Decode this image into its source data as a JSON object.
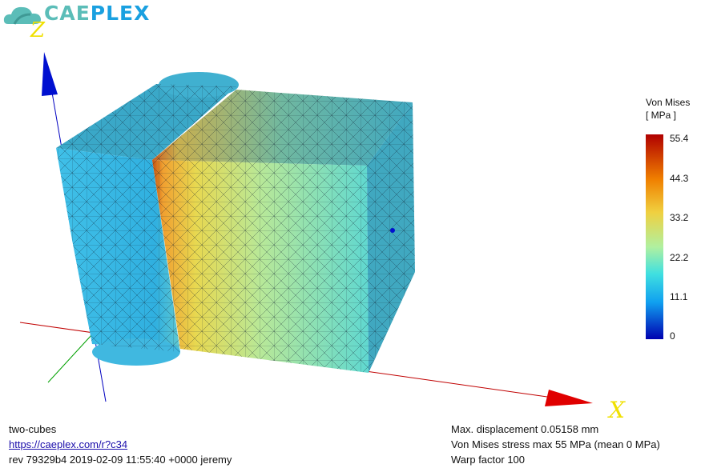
{
  "logo": {
    "part1": "CAE",
    "part2": "PLEX"
  },
  "axes": {
    "x": "X",
    "z": "Z"
  },
  "colorbar": {
    "title": "Von Mises",
    "unit": "[ MPa ]",
    "ticks": [
      "55.4",
      "44.3",
      "33.2",
      "22.2",
      "11.1",
      "0"
    ],
    "colors": [
      "#b00000",
      "#f08000",
      "#f0d040",
      "#b0f0a0",
      "#40e0e0",
      "#10a0f0",
      "#0000b0"
    ]
  },
  "footer_left": {
    "name": "two-cubes",
    "link": "https://caeplex.com/r?c34",
    "rev": "rev 79329b4 2019-02-09 11:55:40 +0000 jeremy"
  },
  "footer_right": {
    "displacement": "Max. displacement 0.05158 mm",
    "stress": "Von Mises stress max 55 MPa (mean 0 MPa)",
    "warp": "Warp factor 100"
  }
}
